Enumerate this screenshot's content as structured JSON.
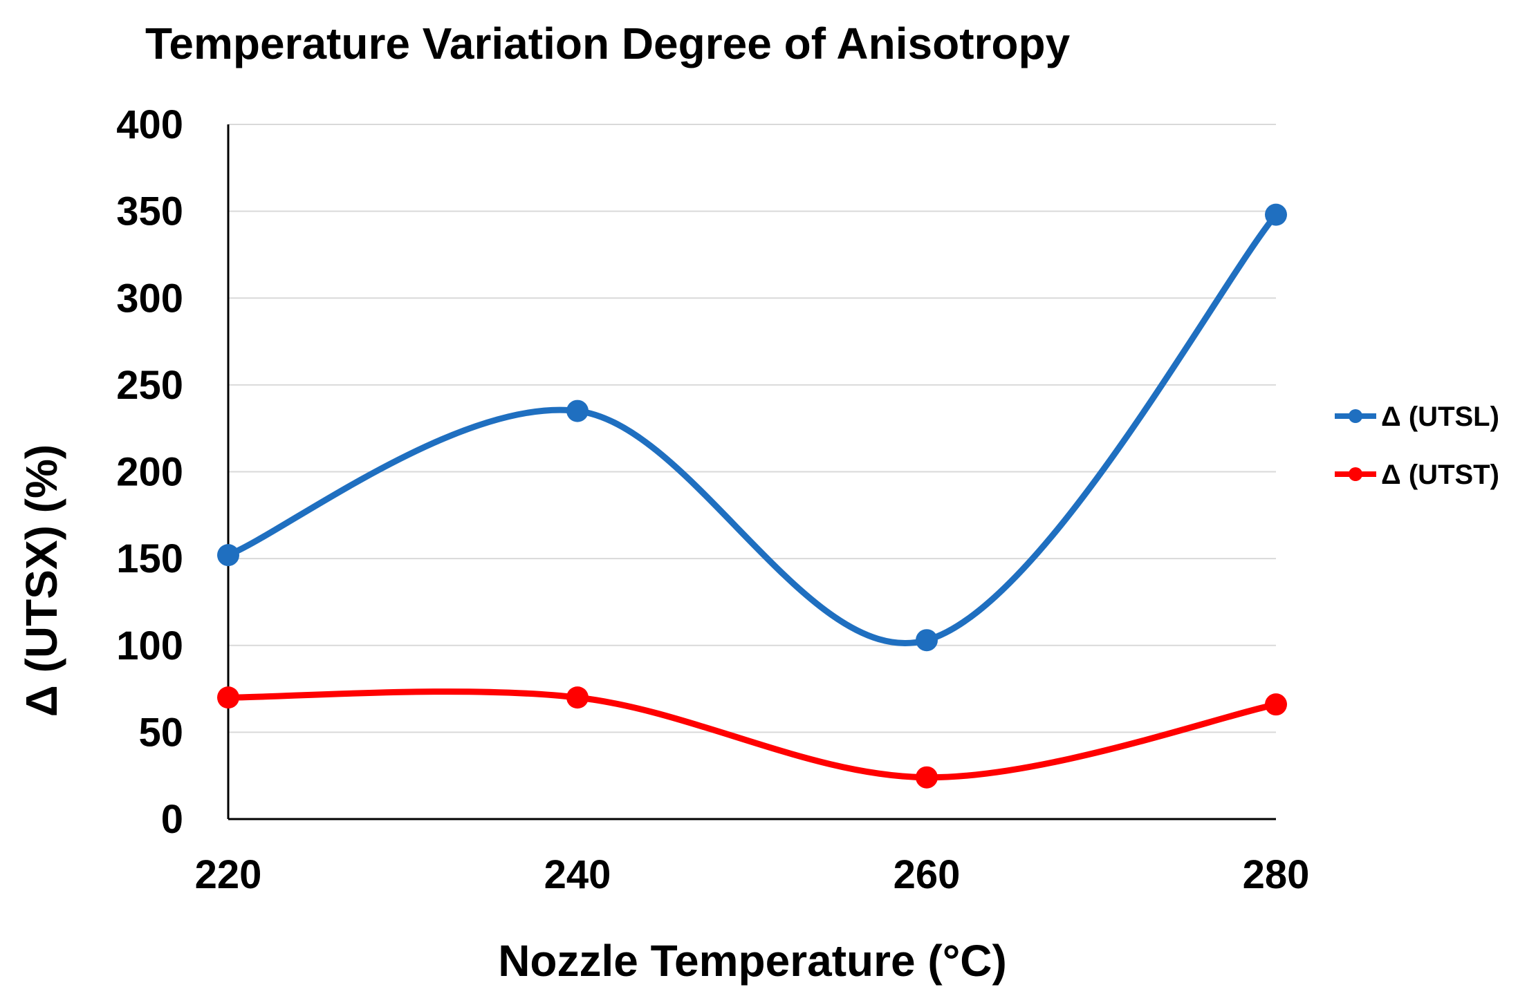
{
  "chart_data": {
    "type": "line",
    "title": "Temperature Variation Degree of Anisotropy",
    "xlabel": "Nozzle Temperature (°C)",
    "ylabel": "Δ (UTSX) (%)",
    "x": [
      220,
      240,
      260,
      280
    ],
    "x_tick_labels": [
      "220",
      "240",
      "260",
      "280"
    ],
    "y_tick_labels": [
      "0",
      "50",
      "100",
      "150",
      "200",
      "250",
      "300",
      "350",
      "400"
    ],
    "ylim": [
      0,
      400
    ],
    "grid": true,
    "smooth": true,
    "legend_position": "right",
    "series": [
      {
        "name": "Δ (UTSL)",
        "color": "#1f6fc0",
        "values": [
          152,
          235,
          103,
          348
        ]
      },
      {
        "name": "Δ (UTST)",
        "color": "#ff0000",
        "values": [
          70,
          70,
          24,
          66
        ]
      }
    ]
  }
}
